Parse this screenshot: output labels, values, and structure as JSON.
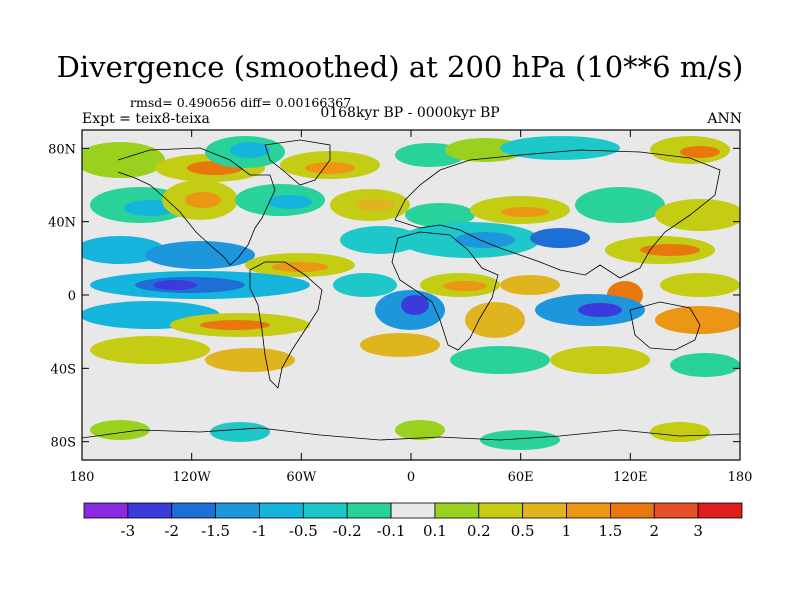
{
  "title": "Divergence (smoothed) at 200 hPa (10**6 m/s)",
  "stats": "rmsd= 0.490656 diff= 0.00166367",
  "period": "0168kyr BP - 0000kyr BP",
  "experiment": "Expt = teix8-teixa",
  "season": "ANN",
  "map": {
    "projection": "cylindrical equidistant",
    "lon_range": [
      -180,
      180
    ],
    "lat_range": [
      -90,
      90
    ],
    "x_ticks": [
      {
        "lon": -180,
        "label": "180"
      },
      {
        "lon": -120,
        "label": "120W"
      },
      {
        "lon": -60,
        "label": "60W"
      },
      {
        "lon": 0,
        "label": "0"
      },
      {
        "lon": 60,
        "label": "60E"
      },
      {
        "lon": 120,
        "label": "120E"
      },
      {
        "lon": 180,
        "label": "180"
      }
    ],
    "y_ticks": [
      {
        "lat": 80,
        "label": "80N"
      },
      {
        "lat": 40,
        "label": "40N"
      },
      {
        "lat": 0,
        "label": "0"
      },
      {
        "lat": -40,
        "label": "40S"
      },
      {
        "lat": -80,
        "label": "80S"
      }
    ]
  },
  "colorbar": {
    "colors": [
      "#8a2be2",
      "#3b3bdc",
      "#1e6ed6",
      "#1e96dc",
      "#14b4dc",
      "#1ec8c8",
      "#28d29a",
      "#e8e8e8",
      "#9ad01e",
      "#c4cc14",
      "#e0b41e",
      "#eb9614",
      "#e8780e",
      "#e65028",
      "#dc1e1e"
    ],
    "labels": [
      "-3",
      "-2",
      "-1.5",
      "-1",
      "-0.5",
      "-0.2",
      "-0.1",
      "0.1",
      "0.2",
      "0.5",
      "1",
      "1.5",
      "2",
      "3"
    ]
  }
}
